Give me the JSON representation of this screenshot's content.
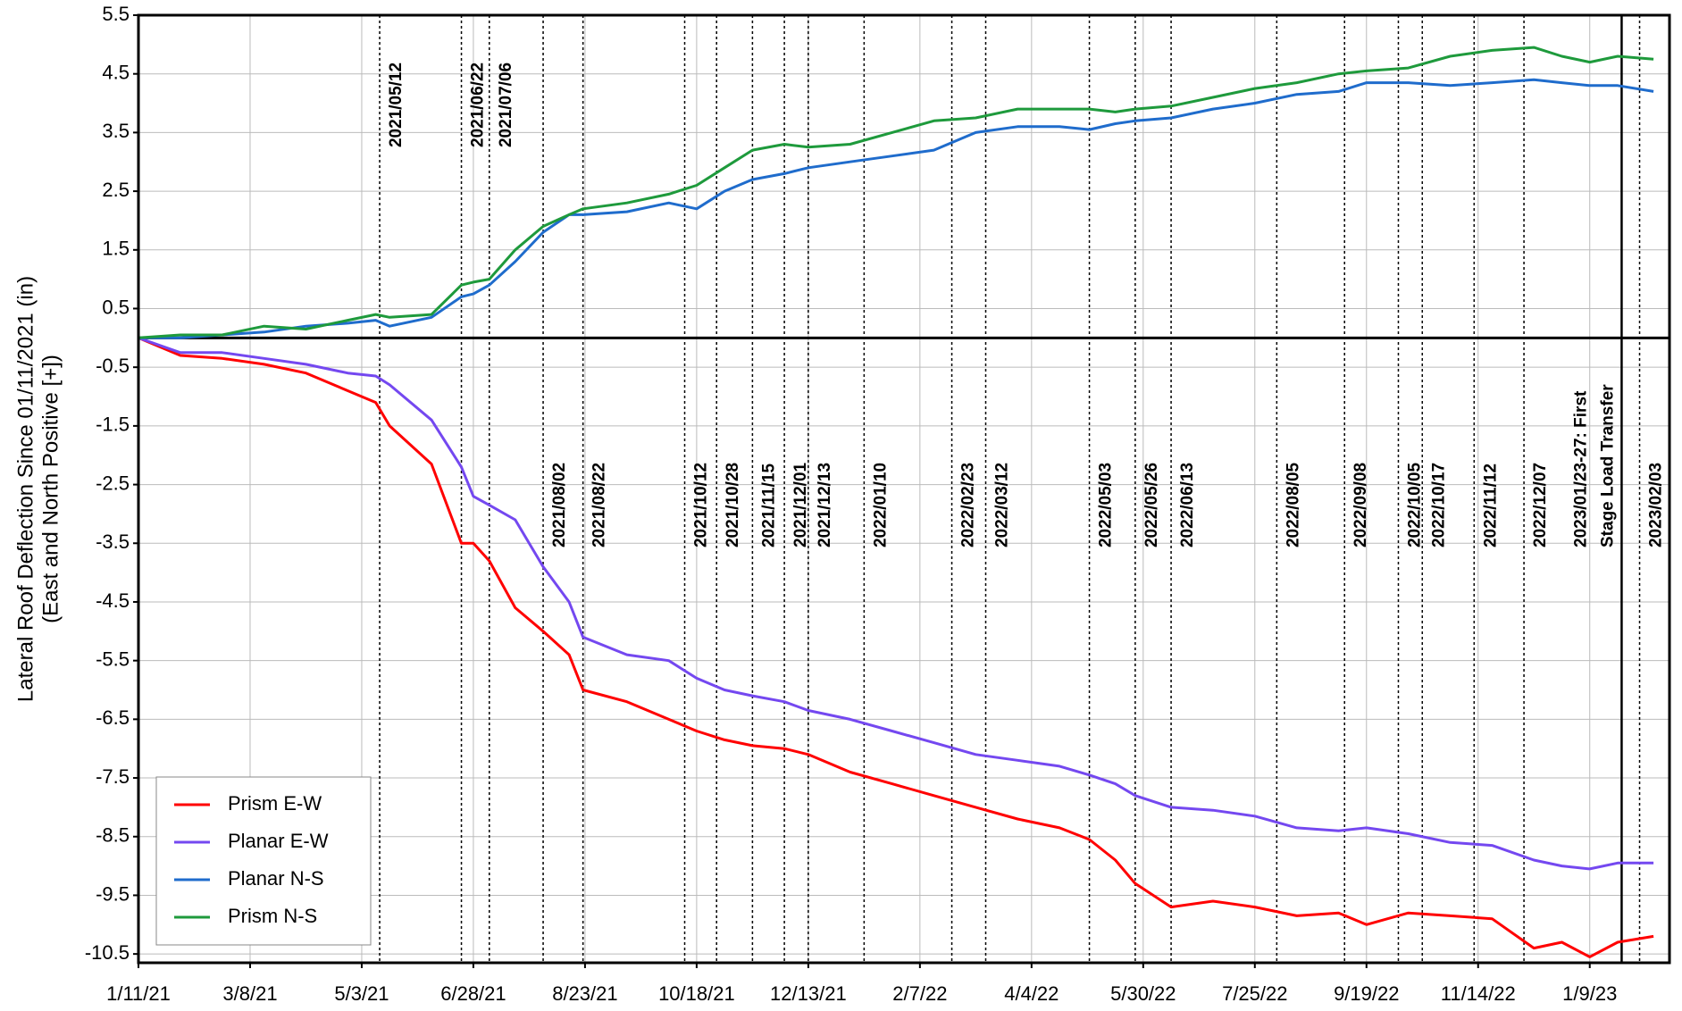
{
  "chart_data": {
    "type": "line",
    "ylabel": [
      "Lateral Roof Deflection Since 01/11/2021 (in)",
      "(East and North Positive [+])"
    ],
    "x": [
      "2021-01-11",
      "2021-02-01",
      "2021-02-22",
      "2021-03-15",
      "2021-04-05",
      "2021-04-26",
      "2021-05-10",
      "2021-05-17",
      "2021-06-07",
      "2021-06-22",
      "2021-06-28",
      "2021-07-06",
      "2021-07-19",
      "2021-08-02",
      "2021-08-15",
      "2021-08-22",
      "2021-09-13",
      "2021-10-04",
      "2021-10-18",
      "2021-11-01",
      "2021-11-15",
      "2021-12-01",
      "2021-12-13",
      "2022-01-03",
      "2022-01-24",
      "2022-02-14",
      "2022-03-07",
      "2022-03-28",
      "2022-04-18",
      "2022-05-03",
      "2022-05-16",
      "2022-05-26",
      "2022-06-13",
      "2022-07-04",
      "2022-07-25",
      "2022-08-15",
      "2022-09-05",
      "2022-09-19",
      "2022-10-10",
      "2022-10-31",
      "2022-11-21",
      "2022-12-12",
      "2022-12-26",
      "2023-01-09",
      "2023-01-23",
      "2023-02-10"
    ],
    "series": [
      {
        "name": "Prism E-W",
        "color": "#ff0000",
        "values": [
          0,
          -0.3,
          -0.35,
          -0.45,
          -0.6,
          -0.9,
          -1.1,
          -1.5,
          -2.15,
          -3.5,
          -3.5,
          -3.8,
          -4.6,
          -5.0,
          -5.4,
          -6.0,
          -6.2,
          -6.5,
          -6.7,
          -6.85,
          -6.95,
          -7.0,
          -7.1,
          -7.4,
          -7.6,
          -7.8,
          -8.0,
          -8.2,
          -8.35,
          -8.55,
          -8.9,
          -9.3,
          -9.7,
          -9.6,
          -9.7,
          -9.85,
          -9.8,
          -10.0,
          -9.8,
          -9.85,
          -9.9,
          -10.4,
          -10.3,
          -10.55,
          -10.3,
          -10.2
        ]
      },
      {
        "name": "Planar E-W",
        "color": "#7448f0",
        "values": [
          0,
          -0.25,
          -0.25,
          -0.35,
          -0.45,
          -0.6,
          -0.65,
          -0.8,
          -1.4,
          -2.2,
          -2.7,
          -2.85,
          -3.1,
          -3.9,
          -4.5,
          -5.1,
          -5.4,
          -5.5,
          -5.8,
          -6.0,
          -6.1,
          -6.2,
          -6.35,
          -6.5,
          -6.7,
          -6.9,
          -7.1,
          -7.2,
          -7.3,
          -7.45,
          -7.6,
          -7.8,
          -8.0,
          -8.05,
          -8.15,
          -8.35,
          -8.4,
          -8.35,
          -8.45,
          -8.6,
          -8.65,
          -8.9,
          -9.0,
          -9.05,
          -8.95,
          -8.95
        ]
      },
      {
        "name": "Planar N-S",
        "color": "#1f6ccc",
        "values": [
          0,
          0,
          0.05,
          0.1,
          0.2,
          0.25,
          0.3,
          0.2,
          0.35,
          0.7,
          0.75,
          0.9,
          1.3,
          1.8,
          2.1,
          2.1,
          2.15,
          2.3,
          2.2,
          2.5,
          2.7,
          2.8,
          2.9,
          3.0,
          3.1,
          3.2,
          3.5,
          3.6,
          3.6,
          3.55,
          3.65,
          3.7,
          3.75,
          3.9,
          4.0,
          4.15,
          4.2,
          4.35,
          4.35,
          4.3,
          4.35,
          4.4,
          4.35,
          4.3,
          4.3,
          4.2
        ]
      },
      {
        "name": "Prism N-S",
        "color": "#1e9a3c",
        "values": [
          0,
          0.05,
          0.05,
          0.2,
          0.15,
          0.3,
          0.4,
          0.35,
          0.4,
          0.9,
          0.95,
          1.0,
          1.5,
          1.9,
          2.1,
          2.2,
          2.3,
          2.45,
          2.6,
          2.9,
          3.2,
          3.3,
          3.25,
          3.3,
          3.5,
          3.7,
          3.75,
          3.9,
          3.9,
          3.9,
          3.85,
          3.9,
          3.95,
          4.1,
          4.25,
          4.35,
          4.5,
          4.55,
          4.6,
          4.8,
          4.9,
          4.95,
          4.8,
          4.7,
          4.8,
          4.75
        ]
      }
    ],
    "xlim": [
      "2021-01-11",
      "2023-02-18"
    ],
    "xticks": [
      {
        "value": "2021-01-11",
        "label": "1/11/21"
      },
      {
        "value": "2021-03-08",
        "label": "3/8/21"
      },
      {
        "value": "2021-05-03",
        "label": "5/3/21"
      },
      {
        "value": "2021-06-28",
        "label": "6/28/21"
      },
      {
        "value": "2021-08-23",
        "label": "8/23/21"
      },
      {
        "value": "2021-10-18",
        "label": "10/18/21"
      },
      {
        "value": "2021-12-13",
        "label": "12/13/21"
      },
      {
        "value": "2022-02-07",
        "label": "2/7/22"
      },
      {
        "value": "2022-04-04",
        "label": "4/4/22"
      },
      {
        "value": "2022-05-30",
        "label": "5/30/22"
      },
      {
        "value": "2022-07-25",
        "label": "7/25/22"
      },
      {
        "value": "2022-09-19",
        "label": "9/19/22"
      },
      {
        "value": "2022-11-14",
        "label": "11/14/22"
      },
      {
        "value": "2023-01-09",
        "label": "1/9/23"
      }
    ],
    "ylim": [
      -10.65,
      5.5
    ],
    "yticks": [
      5.5,
      4.5,
      3.5,
      2.5,
      1.5,
      0.5,
      -0.5,
      -1.5,
      -2.5,
      -3.5,
      -4.5,
      -5.5,
      -6.5,
      -7.5,
      -8.5,
      -9.5,
      -10.5
    ],
    "grid": true,
    "legend": "lower left",
    "top_annotations": [
      {
        "x": "2021-05-12",
        "label": "2021/05/12"
      },
      {
        "x": "2021-06-22",
        "label": "2021/06/22"
      },
      {
        "x": "2021-07-06",
        "label": "2021/07/06"
      }
    ],
    "annotations": [
      {
        "x": "2021-08-02",
        "label": "2021/08/02"
      },
      {
        "x": "2021-08-22",
        "label": "2021/08/22"
      },
      {
        "x": "2021-10-12",
        "label": "2021/10/12"
      },
      {
        "x": "2021-10-28",
        "label": "2021/10/28"
      },
      {
        "x": "2021-11-15",
        "label": "2021/11/15"
      },
      {
        "x": "2021-12-01",
        "label": "2021/12/01"
      },
      {
        "x": "2021-12-13",
        "label": "2021/12/13"
      },
      {
        "x": "2022-01-10",
        "label": "2022/01/10"
      },
      {
        "x": "2022-02-23",
        "label": "2022/02/23"
      },
      {
        "x": "2022-03-12",
        "label": "2022/03/12"
      },
      {
        "x": "2022-05-03",
        "label": "2022/05/03"
      },
      {
        "x": "2022-05-26",
        "label": "2022/05/26"
      },
      {
        "x": "2022-06-13",
        "label": "2022/06/13"
      },
      {
        "x": "2022-08-05",
        "label": "2022/08/05"
      },
      {
        "x": "2022-09-08",
        "label": "2022/09/08"
      },
      {
        "x": "2022-10-05",
        "label": "2022/10/05"
      },
      {
        "x": "2022-10-17",
        "label": "2022/10/17"
      },
      {
        "x": "2022-11-12",
        "label": "2022/11/12"
      },
      {
        "x": "2022-12-07",
        "label": "2022/12/07"
      },
      {
        "x": "2023-02-03",
        "label": "2023/02/03"
      }
    ],
    "milestone": {
      "x": "2023-01-25",
      "label": [
        "2023/01/23-27: First",
        "Stage Load Transfer"
      ]
    }
  }
}
